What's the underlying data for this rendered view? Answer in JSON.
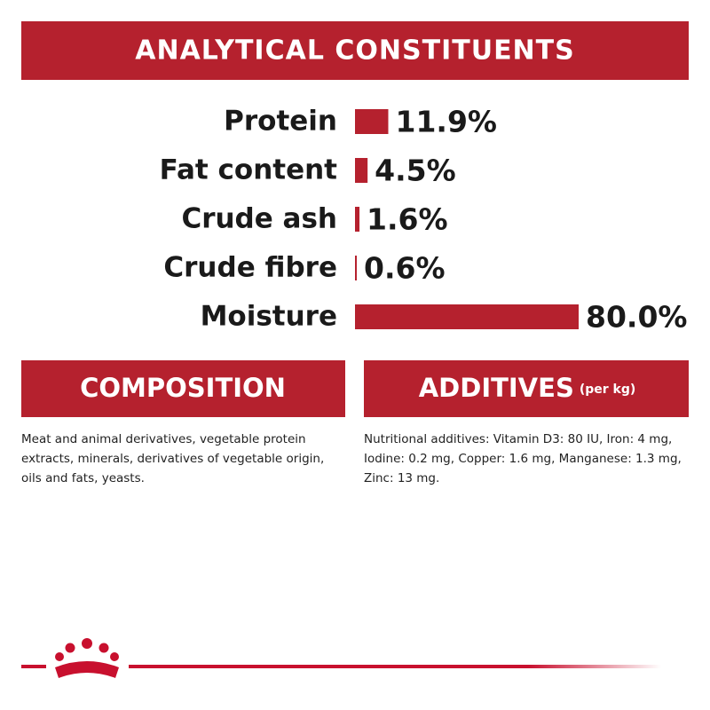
{
  "header": {
    "title": "ANALYTICAL CONSTITUENTS"
  },
  "chart_data": {
    "type": "bar",
    "orientation": "horizontal",
    "color": "#b5212e",
    "categories": [
      "Protein",
      "Fat content",
      "Crude ash",
      "Crude fibre",
      "Moisture"
    ],
    "values": [
      11.9,
      4.5,
      1.6,
      0.6,
      80.0
    ],
    "value_labels": [
      "11.9%",
      "4.5%",
      "1.6%",
      "0.6%",
      "80.0%"
    ]
  },
  "composition": {
    "title": "COMPOSITION",
    "text": "Meat and animal derivatives, vegetable protein extracts, minerals, derivatives of vegetable origin, oils and fats, yeasts."
  },
  "additives": {
    "title": "ADDITIVES",
    "subtitle": "(per kg)",
    "text": "Nutritional additives: Vitamin D3: 80 IU, Iron: 4 mg, Iodine: 0.2 mg, Copper: 1.6 mg, Manganese: 1.3 mg, Zinc: 13 mg."
  }
}
